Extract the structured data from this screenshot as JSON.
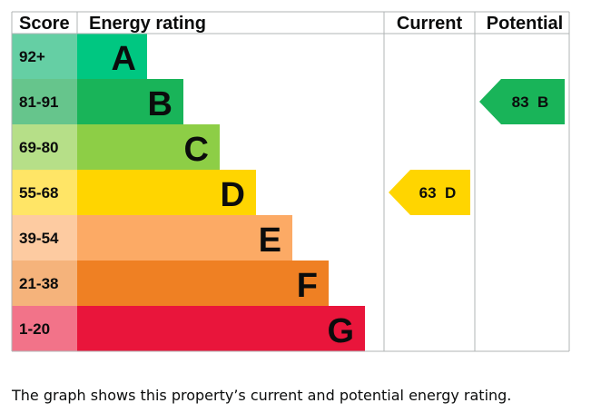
{
  "chart_data": {
    "type": "table",
    "headers": {
      "score": "Score",
      "rating": "Energy rating",
      "current": "Current",
      "potential": "Potential"
    },
    "bands": [
      {
        "letter": "A",
        "range": "92+",
        "color": "#00c781",
        "score_color": "#65cfa4"
      },
      {
        "letter": "B",
        "range": "81-91",
        "color": "#19b459",
        "score_color": "#66c58c"
      },
      {
        "letter": "C",
        "range": "69-80",
        "color": "#8dce46",
        "score_color": "#b6df88"
      },
      {
        "letter": "D",
        "range": "55-68",
        "color": "#ffd500",
        "score_color": "#ffe566"
      },
      {
        "letter": "E",
        "range": "39-54",
        "color": "#fcaa65",
        "score_color": "#fdcba1"
      },
      {
        "letter": "F",
        "range": "21-38",
        "color": "#ef8023",
        "score_color": "#f5b37b"
      },
      {
        "letter": "G",
        "range": "1-20",
        "color": "#e9153b",
        "score_color": "#f27389"
      }
    ],
    "current": {
      "value": 63,
      "band": "D",
      "label": "63  D",
      "color": "#ffd500"
    },
    "potential": {
      "value": 83,
      "band": "B",
      "label": "83  B",
      "color": "#19b459"
    },
    "grid_color": "#b1b4b6"
  },
  "caption": "The graph shows this property’s current and potential energy rating."
}
